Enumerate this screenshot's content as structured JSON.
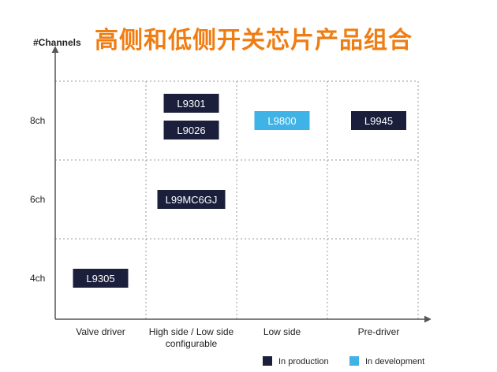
{
  "title": "高侧和低侧开关芯片产品组合",
  "chart_data": {
    "type": "table",
    "ylabel": "#Channels",
    "y_ticks": [
      "8ch",
      "6ch",
      "4ch"
    ],
    "categories": [
      "Valve driver",
      "High side / Low side configurable",
      "Low side",
      "Pre-driver"
    ],
    "category_lines": [
      [
        "Valve driver"
      ],
      [
        "High side / Low side",
        "configurable"
      ],
      [
        "Low side"
      ],
      [
        "Pre-driver"
      ]
    ],
    "products": [
      {
        "name": "L9301",
        "category": "High side / Low side configurable",
        "channels": "8ch",
        "status": "In production"
      },
      {
        "name": "L9026",
        "category": "High side / Low side configurable",
        "channels": "8ch",
        "status": "In production"
      },
      {
        "name": "L9800",
        "category": "Low side",
        "channels": "8ch",
        "status": "In development"
      },
      {
        "name": "L9945",
        "category": "Pre-driver",
        "channels": "8ch",
        "status": "In production"
      },
      {
        "name": "L99MC6GJ",
        "category": "High side / Low side configurable",
        "channels": "6ch",
        "status": "In production"
      },
      {
        "name": "L9305",
        "category": "Valve driver",
        "channels": "4ch",
        "status": "In production"
      }
    ],
    "legend": [
      {
        "label": "In production",
        "color": "#1b1f3b"
      },
      {
        "label": "In development",
        "color": "#3fb2e6"
      }
    ],
    "grid": true,
    "legend_position": "bottom-right"
  }
}
